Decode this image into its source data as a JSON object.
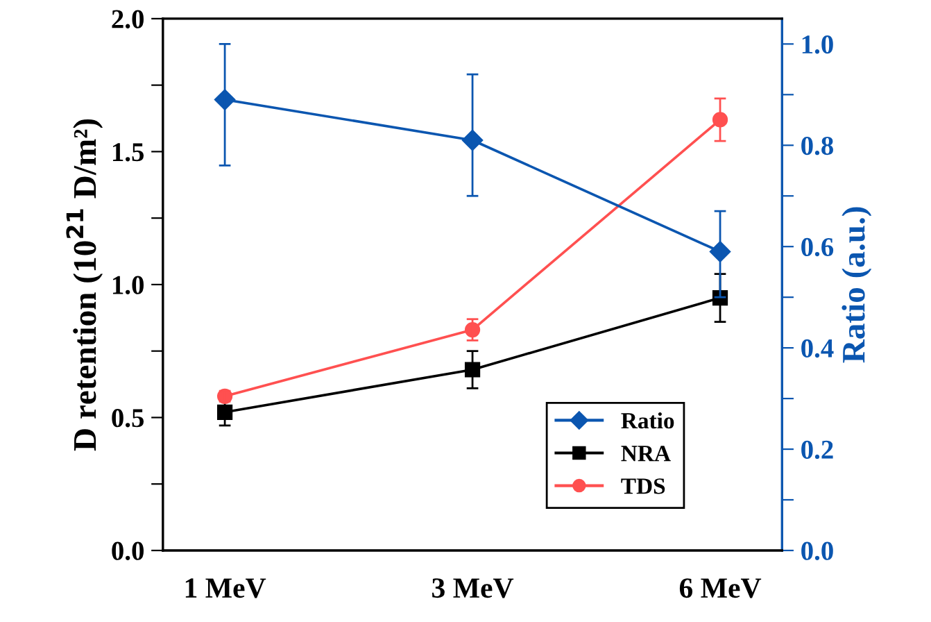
{
  "chart_data": {
    "type": "line",
    "categories": [
      "1 MeV",
      "3 MeV",
      "6 MeV"
    ],
    "ylabel": "D retention (10$^{21}$ D/m²)",
    "y2label": "Ratio (a.u.)",
    "ylim": [
      0,
      2.0
    ],
    "yticks": [
      {
        "value": 0,
        "label": "0.0"
      },
      {
        "value": 0.25,
        "label": null
      },
      0.5,
      {
        "value": 0.75,
        "label": null
      },
      {
        "value": 1,
        "label": "1.0"
      },
      {
        "value": 1.25,
        "label": null
      },
      1.5,
      {
        "value": 1.75,
        "label": null
      },
      {
        "value": 2,
        "label": "2.0"
      }
    ],
    "y2lim": [
      0,
      1.05
    ],
    "y2ticks": [
      {
        "value": 0,
        "label": "0.0"
      },
      {
        "value": 0.1,
        "label": null
      },
      0.2,
      {
        "value": 0.3,
        "label": null
      },
      0.4,
      {
        "value": 0.5,
        "label": null
      },
      0.6,
      {
        "value": 0.7,
        "label": null
      },
      0.8,
      {
        "value": 0.9,
        "label": null
      },
      {
        "value": 1,
        "label": "1.0"
      }
    ],
    "legend": "bottom right",
    "grid": false,
    "line_style": "solid",
    "series": [
      {
        "name": "Ratio",
        "color": "#0b56b0",
        "axis": "y2",
        "marker": "diamond",
        "values": [
          0.89,
          0.81,
          0.59
        ],
        "errors": [
          [
            0.76,
            1.0
          ],
          [
            0.7,
            0.94
          ],
          [
            0.5,
            0.67
          ]
        ]
      },
      {
        "name": "NRA",
        "color": "#000000",
        "marker": "square",
        "values": [
          0.52,
          0.68,
          0.95
        ],
        "errors": [
          0.05,
          0.07,
          0.09
        ]
      },
      {
        "name": "TDS",
        "color": "#ff5050",
        "marker": "circle",
        "values": [
          0.58,
          0.83,
          1.62
        ],
        "errors": [
          0.02,
          0.04,
          0.08
        ]
      }
    ]
  }
}
